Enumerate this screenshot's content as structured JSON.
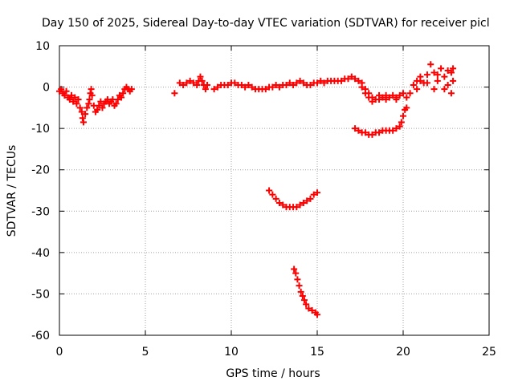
{
  "chart_data": {
    "type": "scatter",
    "title": "Day 150 of 2025, Sidereal Day-to-day VTEC variation (SDTVAR) for receiver picl",
    "xlabel": "GPS time / hours",
    "ylabel": "SDTVAR / TECUs",
    "xlim": [
      0,
      25
    ],
    "ylim": [
      -60,
      10
    ],
    "xticks": [
      "0",
      "5",
      "10",
      "15",
      "20",
      "25"
    ],
    "yticks": [
      "10",
      "0",
      "-10",
      "-20",
      "-30",
      "-40",
      "-50",
      "-60"
    ],
    "grid": true,
    "marker": "+",
    "series_color": "#ff0000",
    "series": [
      {
        "name": "SDTVAR",
        "points": [
          [
            0.0,
            -1.0
          ],
          [
            0.1,
            -0.5
          ],
          [
            0.2,
            -1.5
          ],
          [
            0.3,
            -2.0
          ],
          [
            0.4,
            -1.0
          ],
          [
            0.5,
            -2.5
          ],
          [
            0.6,
            -3.0
          ],
          [
            0.7,
            -2.0
          ],
          [
            0.8,
            -3.5
          ],
          [
            0.9,
            -2.5
          ],
          [
            1.0,
            -4.0
          ],
          [
            1.1,
            -3.0
          ],
          [
            1.2,
            -5.0
          ],
          [
            1.3,
            -6.0
          ],
          [
            1.35,
            -7.5
          ],
          [
            1.4,
            -8.5
          ],
          [
            1.5,
            -6.5
          ],
          [
            1.6,
            -5.0
          ],
          [
            1.7,
            -4.0
          ],
          [
            1.75,
            -3.0
          ],
          [
            1.8,
            -1.5
          ],
          [
            1.85,
            -0.5
          ],
          [
            1.9,
            -2.0
          ],
          [
            2.0,
            -4.5
          ],
          [
            2.1,
            -6.0
          ],
          [
            2.2,
            -5.5
          ],
          [
            2.3,
            -4.5
          ],
          [
            2.4,
            -3.5
          ],
          [
            2.5,
            -5.0
          ],
          [
            2.6,
            -4.0
          ],
          [
            2.7,
            -3.5
          ],
          [
            2.8,
            -3.0
          ],
          [
            2.9,
            -4.0
          ],
          [
            3.0,
            -3.5
          ],
          [
            3.1,
            -3.0
          ],
          [
            3.2,
            -4.5
          ],
          [
            3.3,
            -4.0
          ],
          [
            3.4,
            -3.0
          ],
          [
            3.5,
            -2.0
          ],
          [
            3.6,
            -2.5
          ],
          [
            3.7,
            -1.5
          ],
          [
            3.8,
            -0.5
          ],
          [
            3.9,
            0.0
          ],
          [
            4.0,
            -0.5
          ],
          [
            4.1,
            -1.0
          ],
          [
            4.2,
            -0.5
          ],
          [
            6.7,
            -1.5
          ],
          [
            7.0,
            1.0
          ],
          [
            7.2,
            0.5
          ],
          [
            7.4,
            1.0
          ],
          [
            7.6,
            1.5
          ],
          [
            7.8,
            1.0
          ],
          [
            8.0,
            0.5
          ],
          [
            8.1,
            1.5
          ],
          [
            8.2,
            2.5
          ],
          [
            8.3,
            1.5
          ],
          [
            8.4,
            0.5
          ],
          [
            8.5,
            -0.5
          ],
          [
            8.6,
            0.5
          ],
          [
            9.0,
            -0.5
          ],
          [
            9.2,
            0.0
          ],
          [
            9.4,
            0.5
          ],
          [
            9.6,
            0.5
          ],
          [
            9.8,
            0.5
          ],
          [
            10.0,
            1.0
          ],
          [
            10.2,
            1.0
          ],
          [
            10.4,
            0.5
          ],
          [
            10.6,
            0.5
          ],
          [
            10.8,
            0.0
          ],
          [
            11.0,
            0.5
          ],
          [
            11.2,
            0.0
          ],
          [
            11.4,
            -0.5
          ],
          [
            11.6,
            -0.5
          ],
          [
            11.8,
            -0.5
          ],
          [
            12.0,
            -0.5
          ],
          [
            12.2,
            0.0
          ],
          [
            12.4,
            0.0
          ],
          [
            12.6,
            0.5
          ],
          [
            12.8,
            0.0
          ],
          [
            13.0,
            0.5
          ],
          [
            13.2,
            0.5
          ],
          [
            13.4,
            1.0
          ],
          [
            13.6,
            0.5
          ],
          [
            13.8,
            1.0
          ],
          [
            14.0,
            1.5
          ],
          [
            14.2,
            1.0
          ],
          [
            14.4,
            0.5
          ],
          [
            14.6,
            0.5
          ],
          [
            14.8,
            1.0
          ],
          [
            15.0,
            1.0
          ],
          [
            15.2,
            1.5
          ],
          [
            15.4,
            1.0
          ],
          [
            15.6,
            1.5
          ],
          [
            15.8,
            1.5
          ],
          [
            16.0,
            1.5
          ],
          [
            16.2,
            1.5
          ],
          [
            16.4,
            1.5
          ],
          [
            16.6,
            2.0
          ],
          [
            16.8,
            2.0
          ],
          [
            17.0,
            2.5
          ],
          [
            17.2,
            2.0
          ],
          [
            17.4,
            1.5
          ],
          [
            17.6,
            0.0
          ],
          [
            17.8,
            -1.5
          ],
          [
            18.0,
            -2.5
          ],
          [
            18.2,
            -3.5
          ],
          [
            18.4,
            -3.0
          ],
          [
            18.6,
            -2.0
          ],
          [
            18.8,
            -2.5
          ],
          [
            19.0,
            -2.0
          ],
          [
            19.2,
            -2.5
          ],
          [
            19.4,
            -2.0
          ],
          [
            19.6,
            -2.5
          ],
          [
            19.8,
            -2.0
          ],
          [
            20.0,
            -1.5
          ],
          [
            20.2,
            -2.5
          ],
          [
            20.4,
            -1.5
          ],
          [
            20.6,
            0.5
          ],
          [
            20.8,
            1.5
          ],
          [
            21.0,
            2.5
          ],
          [
            21.2,
            1.0
          ],
          [
            21.4,
            3.0
          ],
          [
            21.6,
            5.5
          ],
          [
            21.8,
            3.5
          ],
          [
            22.0,
            1.5
          ],
          [
            22.2,
            4.5
          ],
          [
            22.4,
            2.5
          ],
          [
            22.6,
            0.5
          ],
          [
            22.8,
            3.5
          ],
          [
            22.9,
            1.5
          ],
          [
            17.6,
            1.0
          ],
          [
            17.8,
            -0.5
          ],
          [
            18.0,
            -1.5
          ],
          [
            18.2,
            -2.5
          ],
          [
            18.6,
            -3.0
          ],
          [
            19.0,
            -3.0
          ],
          [
            19.6,
            -3.0
          ],
          [
            20.8,
            -0.5
          ],
          [
            21.0,
            1.5
          ],
          [
            21.4,
            1.0
          ],
          [
            21.8,
            -0.5
          ],
          [
            22.0,
            3.0
          ],
          [
            22.4,
            -0.5
          ],
          [
            22.6,
            4.0
          ],
          [
            22.8,
            -1.5
          ],
          [
            22.9,
            4.5
          ],
          [
            17.2,
            -10.0
          ],
          [
            17.4,
            -10.5
          ],
          [
            17.6,
            -11.0
          ],
          [
            17.8,
            -11.0
          ],
          [
            18.0,
            -11.5
          ],
          [
            18.2,
            -11.5
          ],
          [
            18.4,
            -11.0
          ],
          [
            18.6,
            -11.0
          ],
          [
            18.8,
            -10.5
          ],
          [
            19.0,
            -10.5
          ],
          [
            19.2,
            -10.5
          ],
          [
            19.4,
            -10.5
          ],
          [
            19.6,
            -10.0
          ],
          [
            19.8,
            -9.5
          ],
          [
            19.9,
            -8.5
          ],
          [
            20.0,
            -7.0
          ],
          [
            20.1,
            -5.5
          ],
          [
            20.2,
            -5.0
          ],
          [
            12.2,
            -25.0
          ],
          [
            12.4,
            -26.0
          ],
          [
            12.6,
            -27.0
          ],
          [
            12.8,
            -28.0
          ],
          [
            13.0,
            -28.5
          ],
          [
            13.2,
            -29.0
          ],
          [
            13.4,
            -29.0
          ],
          [
            13.6,
            -29.0
          ],
          [
            13.8,
            -29.0
          ],
          [
            14.0,
            -28.5
          ],
          [
            14.2,
            -28.0
          ],
          [
            14.4,
            -27.5
          ],
          [
            14.6,
            -27.0
          ],
          [
            14.8,
            -26.0
          ],
          [
            15.0,
            -25.5
          ],
          [
            13.65,
            -44.0
          ],
          [
            13.75,
            -45.0
          ],
          [
            13.85,
            -46.5
          ],
          [
            13.95,
            -48.0
          ],
          [
            14.05,
            -49.5
          ],
          [
            14.15,
            -50.5
          ],
          [
            14.25,
            -51.5
          ],
          [
            14.35,
            -52.5
          ],
          [
            14.5,
            -53.5
          ],
          [
            14.7,
            -54.0
          ],
          [
            14.9,
            -54.5
          ],
          [
            15.0,
            -55.0
          ]
        ]
      }
    ]
  }
}
